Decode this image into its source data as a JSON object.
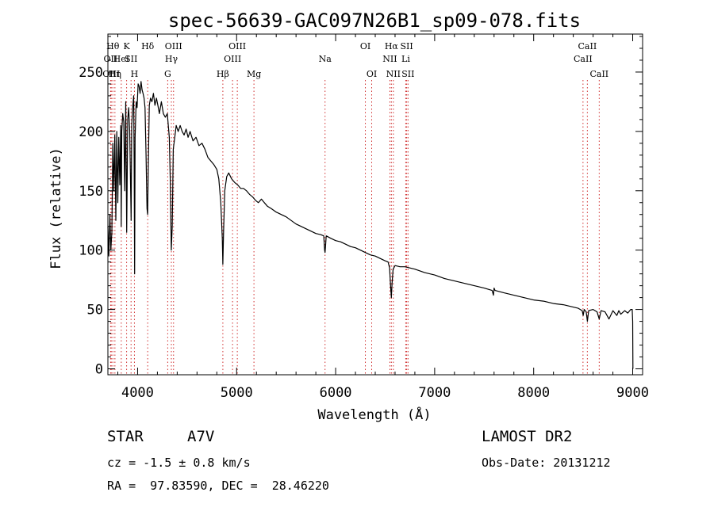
{
  "chart_data": {
    "type": "line",
    "title": "spec-56639-GAC097N26B1_sp09-078.fits",
    "xlabel": "Wavelength (Å)",
    "ylabel": "Flux (relative)",
    "xlim": [
      3700,
      9100
    ],
    "ylim": [
      -5,
      282
    ],
    "xticks": [
      4000,
      5000,
      6000,
      7000,
      8000,
      9000
    ],
    "yticks": [
      0,
      50,
      100,
      150,
      200,
      250
    ],
    "grid": false,
    "series": [
      {
        "points": [
          [
            3700,
            120
          ],
          [
            3710,
            95
          ],
          [
            3720,
            130
          ],
          [
            3730,
            100
          ],
          [
            3740,
            115
          ],
          [
            3750,
            190
          ],
          [
            3760,
            150
          ],
          [
            3770,
            197
          ],
          [
            3780,
            125
          ],
          [
            3790,
            200
          ],
          [
            3800,
            140
          ],
          [
            3810,
            195
          ],
          [
            3820,
            155
          ],
          [
            3830,
            205
          ],
          [
            3835,
            120
          ],
          [
            3840,
            200
          ],
          [
            3850,
            215
          ],
          [
            3860,
            208
          ],
          [
            3870,
            150
          ],
          [
            3880,
            225
          ],
          [
            3890,
            115
          ],
          [
            3900,
            210
          ],
          [
            3910,
            220
          ],
          [
            3920,
            200
          ],
          [
            3930,
            150
          ],
          [
            3935,
            125
          ],
          [
            3940,
            205
          ],
          [
            3950,
            220
          ],
          [
            3960,
            230
          ],
          [
            3965,
            175
          ],
          [
            3970,
            80
          ],
          [
            3975,
            195
          ],
          [
            3985,
            225
          ],
          [
            3995,
            220
          ],
          [
            4005,
            240
          ],
          [
            4015,
            238
          ],
          [
            4025,
            232
          ],
          [
            4035,
            242
          ],
          [
            4045,
            235
          ],
          [
            4055,
            232
          ],
          [
            4065,
            228
          ],
          [
            4075,
            220
          ],
          [
            4085,
            180
          ],
          [
            4095,
            135
          ],
          [
            4101,
            130
          ],
          [
            4108,
            170
          ],
          [
            4118,
            222
          ],
          [
            4130,
            228
          ],
          [
            4145,
            225
          ],
          [
            4160,
            232
          ],
          [
            4175,
            222
          ],
          [
            4190,
            228
          ],
          [
            4205,
            222
          ],
          [
            4220,
            215
          ],
          [
            4240,
            225
          ],
          [
            4260,
            215
          ],
          [
            4280,
            212
          ],
          [
            4300,
            215
          ],
          [
            4320,
            195
          ],
          [
            4330,
            160
          ],
          [
            4340,
            100
          ],
          [
            4350,
            120
          ],
          [
            4360,
            185
          ],
          [
            4375,
            195
          ],
          [
            4390,
            205
          ],
          [
            4410,
            200
          ],
          [
            4430,
            205
          ],
          [
            4450,
            200
          ],
          [
            4470,
            197
          ],
          [
            4490,
            202
          ],
          [
            4510,
            195
          ],
          [
            4530,
            200
          ],
          [
            4560,
            192
          ],
          [
            4590,
            195
          ],
          [
            4620,
            188
          ],
          [
            4650,
            190
          ],
          [
            4680,
            185
          ],
          [
            4710,
            178
          ],
          [
            4740,
            175
          ],
          [
            4770,
            172
          ],
          [
            4800,
            168
          ],
          [
            4820,
            160
          ],
          [
            4840,
            140
          ],
          [
            4855,
            110
          ],
          [
            4861,
            88
          ],
          [
            4868,
            115
          ],
          [
            4880,
            150
          ],
          [
            4900,
            162
          ],
          [
            4920,
            165
          ],
          [
            4950,
            160
          ],
          [
            4980,
            157
          ],
          [
            5010,
            155
          ],
          [
            5040,
            152
          ],
          [
            5070,
            152
          ],
          [
            5100,
            150
          ],
          [
            5130,
            147
          ],
          [
            5160,
            145
          ],
          [
            5190,
            142
          ],
          [
            5220,
            140
          ],
          [
            5250,
            143
          ],
          [
            5280,
            140
          ],
          [
            5310,
            137
          ],
          [
            5350,
            135
          ],
          [
            5400,
            132
          ],
          [
            5450,
            130
          ],
          [
            5500,
            128
          ],
          [
            5550,
            125
          ],
          [
            5600,
            122
          ],
          [
            5650,
            120
          ],
          [
            5700,
            118
          ],
          [
            5750,
            116
          ],
          [
            5800,
            114
          ],
          [
            5850,
            113
          ],
          [
            5880,
            112
          ],
          [
            5889,
            100
          ],
          [
            5893,
            98
          ],
          [
            5897,
            102
          ],
          [
            5905,
            112
          ],
          [
            5950,
            110
          ],
          [
            6000,
            108
          ],
          [
            6050,
            107
          ],
          [
            6100,
            105
          ],
          [
            6150,
            103
          ],
          [
            6200,
            102
          ],
          [
            6250,
            100
          ],
          [
            6300,
            98
          ],
          [
            6350,
            96
          ],
          [
            6400,
            95
          ],
          [
            6450,
            93
          ],
          [
            6500,
            91
          ],
          [
            6530,
            90
          ],
          [
            6545,
            85
          ],
          [
            6555,
            70
          ],
          [
            6563,
            60
          ],
          [
            6570,
            72
          ],
          [
            6580,
            84
          ],
          [
            6600,
            87
          ],
          [
            6650,
            86
          ],
          [
            6700,
            86
          ],
          [
            6750,
            85
          ],
          [
            6800,
            84
          ],
          [
            6900,
            81
          ],
          [
            7000,
            79
          ],
          [
            7100,
            76
          ],
          [
            7200,
            74
          ],
          [
            7300,
            72
          ],
          [
            7400,
            70
          ],
          [
            7500,
            68
          ],
          [
            7580,
            66
          ],
          [
            7594,
            62
          ],
          [
            7600,
            68
          ],
          [
            7610,
            66
          ],
          [
            7700,
            64
          ],
          [
            7800,
            62
          ],
          [
            7900,
            60
          ],
          [
            8000,
            58
          ],
          [
            8100,
            57
          ],
          [
            8200,
            55
          ],
          [
            8300,
            54
          ],
          [
            8400,
            52
          ],
          [
            8450,
            51
          ],
          [
            8490,
            49
          ],
          [
            8500,
            45
          ],
          [
            8510,
            50
          ],
          [
            8530,
            48
          ],
          [
            8542,
            40
          ],
          [
            8555,
            49
          ],
          [
            8600,
            50
          ],
          [
            8640,
            48
          ],
          [
            8662,
            42
          ],
          [
            8680,
            49
          ],
          [
            8720,
            48
          ],
          [
            8760,
            42
          ],
          [
            8800,
            49
          ],
          [
            8840,
            45
          ],
          [
            8860,
            49
          ],
          [
            8880,
            46
          ],
          [
            8920,
            49
          ],
          [
            8950,
            47
          ],
          [
            8980,
            50
          ],
          [
            8995,
            50
          ],
          [
            9000,
            40
          ],
          [
            9002,
            0
          ]
        ]
      }
    ],
    "line_color": "#000000",
    "marker_color": "#d03030",
    "markers": [
      {
        "x": 3727,
        "label": "OII",
        "row": 2
      },
      {
        "x": 3734,
        "label": "OIII",
        "row": 3
      },
      {
        "x": 3750,
        "label": "Hθ",
        "row": 1
      },
      {
        "x": 3771,
        "label": "Hη",
        "row": 3
      },
      {
        "x": 3835,
        "label": "HeI",
        "row": 2
      },
      {
        "x": 3889,
        "label": "K",
        "row": 1
      },
      {
        "x": 3934,
        "label": "SII",
        "row": 2
      },
      {
        "x": 3968,
        "label": "H",
        "row": 3
      },
      {
        "x": 4102,
        "label": "Hδ",
        "row": 1
      },
      {
        "x": 4304,
        "label": "G",
        "row": 3
      },
      {
        "x": 4341,
        "label": "Hγ",
        "row": 2
      },
      {
        "x": 4363,
        "label": "OIII",
        "row": 1
      },
      {
        "x": 4861,
        "label": "Hβ",
        "row": 3
      },
      {
        "x": 4959,
        "label": "OIII",
        "row": 2
      },
      {
        "x": 5007,
        "label": "OIII",
        "row": 1
      },
      {
        "x": 5175,
        "label": "Mg",
        "row": 3
      },
      {
        "x": 5893,
        "label": "Na",
        "row": 2
      },
      {
        "x": 6300,
        "label": "OI",
        "row": 1
      },
      {
        "x": 6364,
        "label": "OI",
        "row": 3
      },
      {
        "x": 6548,
        "label": "NII",
        "row": 2
      },
      {
        "x": 6563,
        "label": "Hα",
        "row": 1
      },
      {
        "x": 6583,
        "label": "NII",
        "row": 3
      },
      {
        "x": 6708,
        "label": "Li",
        "row": 2
      },
      {
        "x": 6717,
        "label": "SII",
        "row": 1
      },
      {
        "x": 6731,
        "label": "SII",
        "row": 3
      },
      {
        "x": 8498,
        "label": "CaII",
        "row": 2
      },
      {
        "x": 8542,
        "label": "CaII",
        "row": 1
      },
      {
        "x": 8662,
        "label": "CaII",
        "row": 3
      }
    ]
  },
  "info": {
    "class_label": "STAR",
    "subclass": "A7V",
    "survey": "LAMOST DR2",
    "cz": "cz = -1.5 ± 0.8 km/s",
    "obs_date": "Obs-Date: 20131212",
    "coords": "RA =  97.83590, DEC =  28.46220"
  }
}
